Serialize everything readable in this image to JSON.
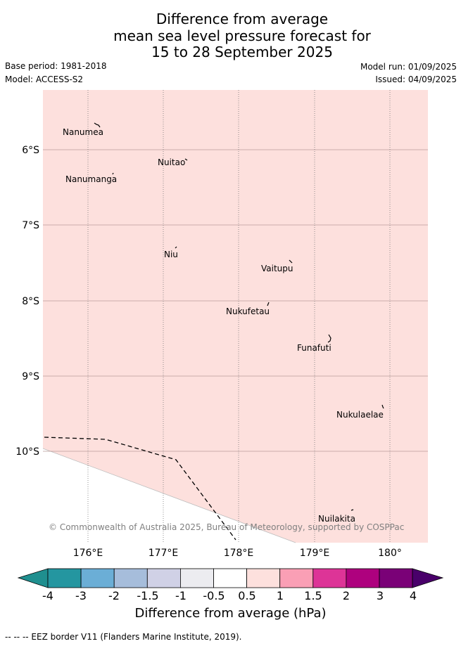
{
  "header": {
    "title_lines": [
      "Difference from average",
      "mean sea level pressure forecast for",
      "15 to 28 September 2025"
    ],
    "base_period": "Base period: 1981-2018",
    "model": "Model: ACCESS-S2",
    "model_run": "Model run: 01/09/2025",
    "issued": "Issued: 04/09/2025"
  },
  "map": {
    "fill_color": "#fde0dd",
    "fill_category": "0.5 to 1",
    "latitude_labels": [
      "6°S",
      "7°S",
      "8°S",
      "9°S",
      "10°S"
    ],
    "longitude_labels": [
      "176°E",
      "177°E",
      "178°E",
      "179°E",
      "180°"
    ],
    "islands": [
      "Nanumea",
      "Nuitao",
      "Nanumanga",
      "Niu",
      "Vaitupu",
      "Nukufetau",
      "Funafuti",
      "Nukulaelae",
      "Nuilakita"
    ],
    "copyright": "© Commonwealth of Australia 2025, Bureau of Meteorology, supported by COSPPac"
  },
  "colorbar": {
    "ticks": [
      "-4",
      "-3",
      "-2",
      "-1.5",
      "-1",
      "-0.5",
      "0.5",
      "1",
      "1.5",
      "2",
      "3",
      "4"
    ],
    "colors": [
      "#1f8f8f",
      "#2496a0",
      "#6baed6",
      "#a6bddb",
      "#d0d1e6",
      "#ececf0",
      "#ffffff",
      "#fde0dd",
      "#fa9fb5",
      "#dd3497",
      "#ae017e",
      "#7a0177",
      "#49006a"
    ],
    "title": "Difference from average (hPa)"
  },
  "footnote": "--  --  -- EEZ border V11 (Flanders Marine Institute, 2019)."
}
